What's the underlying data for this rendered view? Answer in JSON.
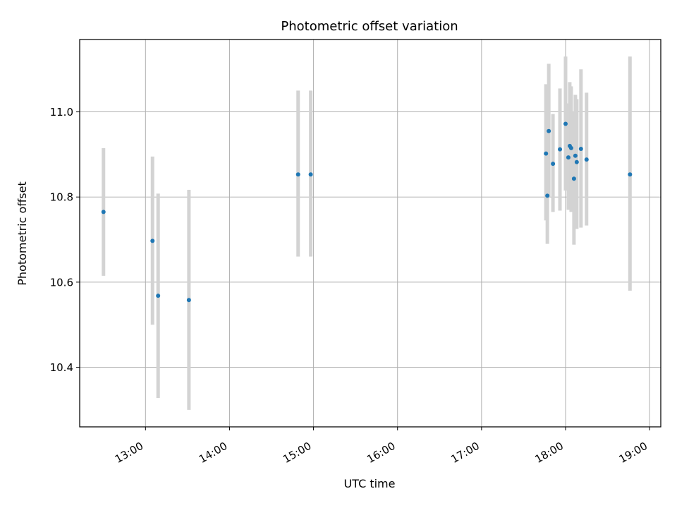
{
  "chart_data": {
    "type": "scatter",
    "title": "Photometric offset variation",
    "xlabel": "UTC time",
    "ylabel": "Photometric offset",
    "x_unit": "UTC time (HH:MM)",
    "xlim": [
      "12:13",
      "19:08"
    ],
    "ylim": [
      10.26,
      11.17
    ],
    "x_ticks": [
      "13:00",
      "14:00",
      "15:00",
      "16:00",
      "17:00",
      "18:00",
      "19:00"
    ],
    "y_ticks": [
      "10.4",
      "10.6",
      "10.8",
      "11.0"
    ],
    "y_tick_values": [
      10.4,
      10.6,
      10.8,
      11.0
    ],
    "grid": true,
    "marker_color": "#1f77b4",
    "errorbar_color": "#d3d3d3",
    "points": [
      {
        "x": "12:30",
        "y": 10.765,
        "ylo": 10.615,
        "yhi": 10.915
      },
      {
        "x": "13:05",
        "y": 10.697,
        "ylo": 10.5,
        "yhi": 10.895
      },
      {
        "x": "13:09",
        "y": 10.568,
        "ylo": 10.328,
        "yhi": 10.808
      },
      {
        "x": "13:31",
        "y": 10.558,
        "ylo": 10.3,
        "yhi": 10.817
      },
      {
        "x": "14:49",
        "y": 10.853,
        "ylo": 10.66,
        "yhi": 11.05
      },
      {
        "x": "14:58",
        "y": 10.853,
        "ylo": 10.66,
        "yhi": 11.05
      },
      {
        "x": "17:46",
        "y": 10.902,
        "ylo": 10.745,
        "yhi": 11.065
      },
      {
        "x": "17:47",
        "y": 10.803,
        "ylo": 10.69,
        "yhi": 10.92
      },
      {
        "x": "17:48",
        "y": 10.955,
        "ylo": 10.8,
        "yhi": 11.113
      },
      {
        "x": "17:51",
        "y": 10.878,
        "ylo": 10.765,
        "yhi": 10.995
      },
      {
        "x": "17:56",
        "y": 10.912,
        "ylo": 10.768,
        "yhi": 11.055
      },
      {
        "x": "18:00",
        "y": 10.972,
        "ylo": 10.815,
        "yhi": 11.13
      },
      {
        "x": "18:02",
        "y": 10.893,
        "ylo": 10.77,
        "yhi": 11.02
      },
      {
        "x": "18:03",
        "y": 10.92,
        "ylo": 10.77,
        "yhi": 11.07
      },
      {
        "x": "18:04",
        "y": 10.915,
        "ylo": 10.765,
        "yhi": 11.06
      },
      {
        "x": "18:06",
        "y": 10.843,
        "ylo": 10.688,
        "yhi": 11.0
      },
      {
        "x": "18:07",
        "y": 10.897,
        "ylo": 10.745,
        "yhi": 11.04
      },
      {
        "x": "18:08",
        "y": 10.882,
        "ylo": 10.725,
        "yhi": 11.03
      },
      {
        "x": "18:11",
        "y": 10.913,
        "ylo": 10.728,
        "yhi": 11.1
      },
      {
        "x": "18:15",
        "y": 10.888,
        "ylo": 10.733,
        "yhi": 11.045
      },
      {
        "x": "18:46",
        "y": 10.853,
        "ylo": 10.58,
        "yhi": 11.13
      }
    ]
  }
}
